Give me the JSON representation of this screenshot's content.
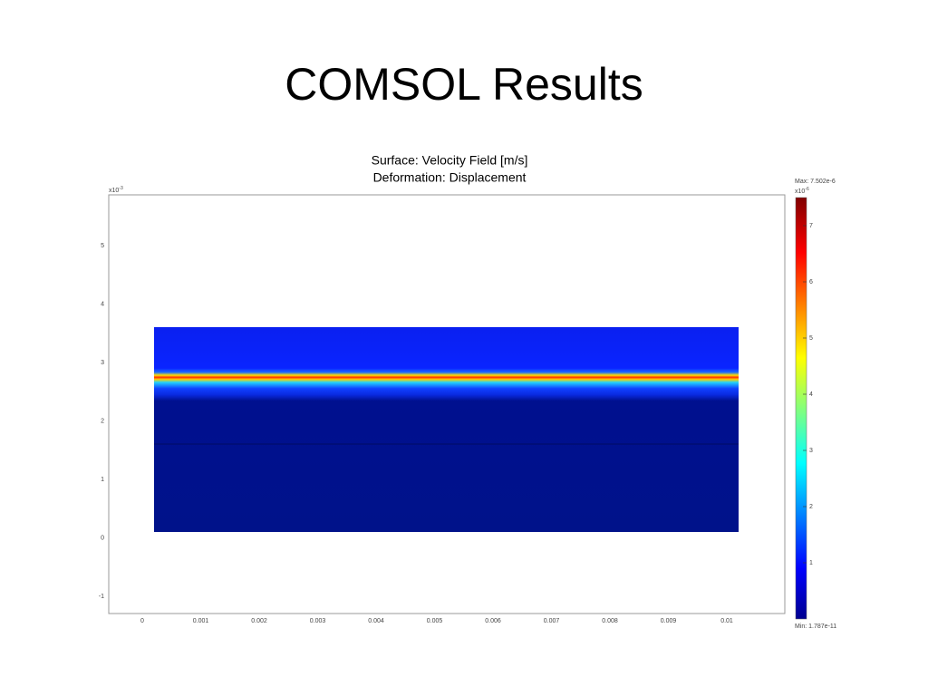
{
  "slide": {
    "title": "COMSOL Results"
  },
  "plot": {
    "title_lines": [
      "Surface: Velocity Field [m/s]",
      "Deformation: Displacement"
    ],
    "y_exponent": {
      "base": "x10",
      "power": "-3"
    },
    "x_ticks": [
      "0",
      "0.001",
      "0.002",
      "0.003",
      "0.004",
      "0.005",
      "0.006",
      "0.007",
      "0.008",
      "0.009",
      "0.01"
    ],
    "y_ticks": [
      "5",
      "4",
      "3",
      "2",
      "1",
      "0",
      "-1"
    ],
    "colorbar": {
      "max": "Max: 7.502e-6",
      "min": "Min: 1.787e-11",
      "exponent": {
        "base": "x10",
        "power": "-6"
      },
      "ticks": [
        "7",
        "6",
        "5",
        "4",
        "3",
        "2",
        "1"
      ]
    }
  }
}
